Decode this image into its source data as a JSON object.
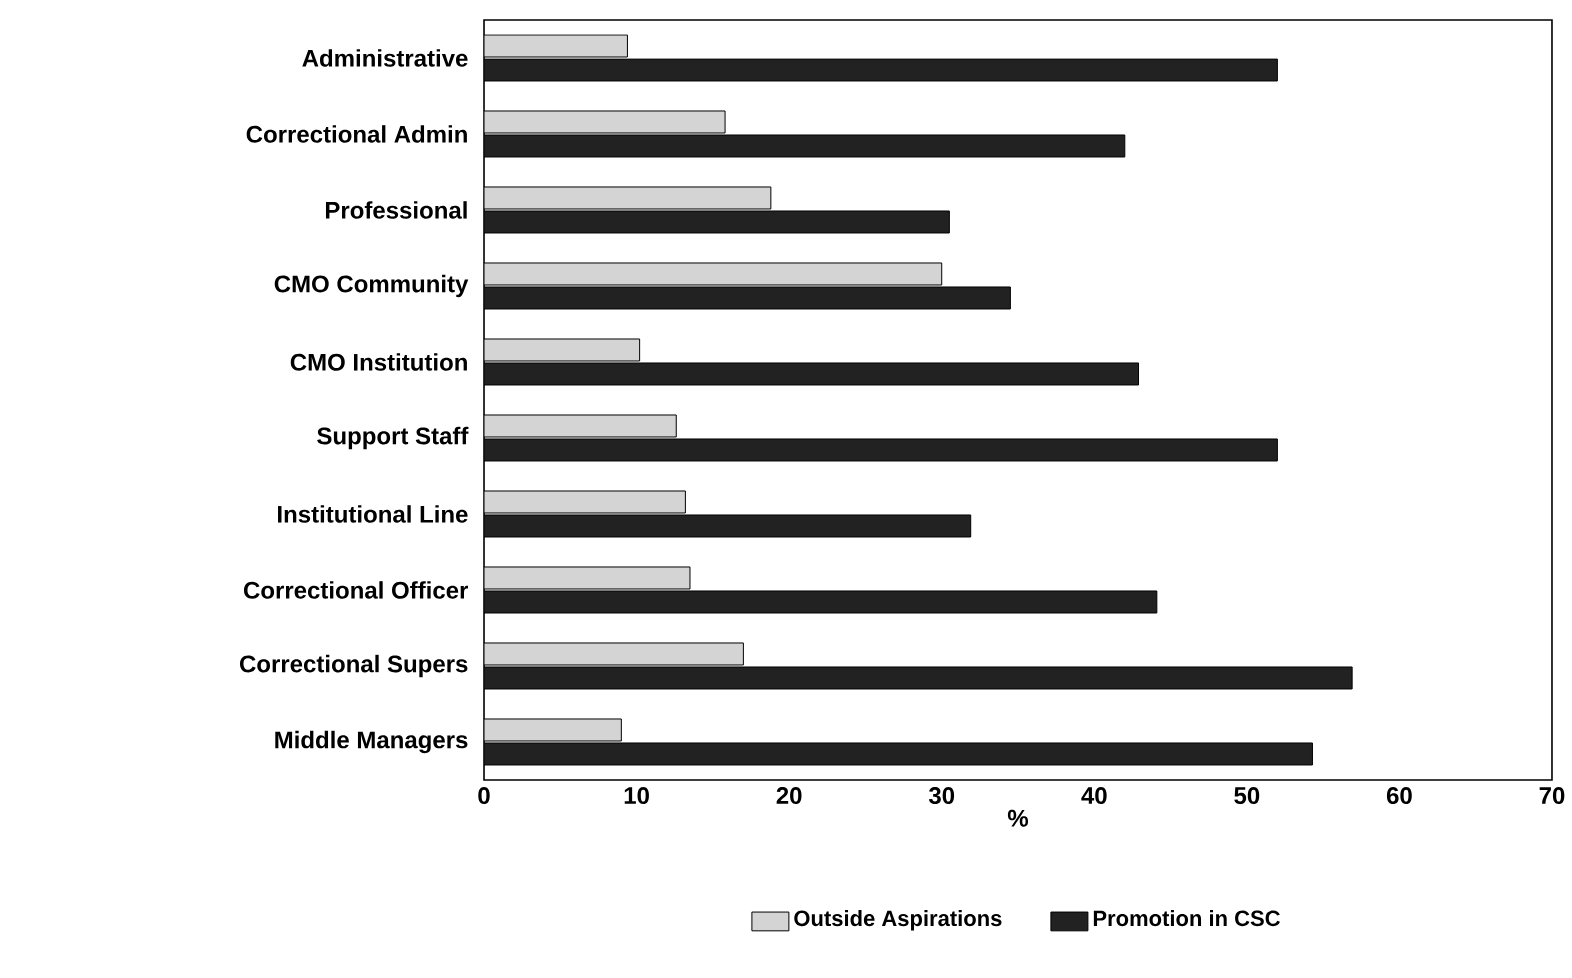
{
  "chart_data": {
    "type": "bar",
    "orientation": "horizontal",
    "xlabel": "%",
    "categories": [
      "Administrative",
      "Correctional Admin",
      "Professional",
      "CMO Community",
      "CMO Institution",
      "Support Staff",
      "Institutional Line",
      "Correctional Officer",
      "Correctional Supers",
      "Middle Managers"
    ],
    "series": [
      {
        "name": "Outside Aspirations",
        "color": "#d4d4d4",
        "values": [
          9.4,
          15.8,
          18.8,
          30.0,
          10.2,
          12.6,
          13.2,
          13.5,
          17.0,
          9.0
        ]
      },
      {
        "name": "Promotion in CSC",
        "color": "#222222",
        "values": [
          52.0,
          42.0,
          30.5,
          34.5,
          42.9,
          52.0,
          31.9,
          44.1,
          56.9,
          54.3
        ]
      }
    ],
    "xlim": [
      0,
      70
    ],
    "xticks": [
      0,
      10,
      20,
      30,
      40,
      50,
      60,
      70
    ],
    "grid": false,
    "legend": "bottom"
  }
}
